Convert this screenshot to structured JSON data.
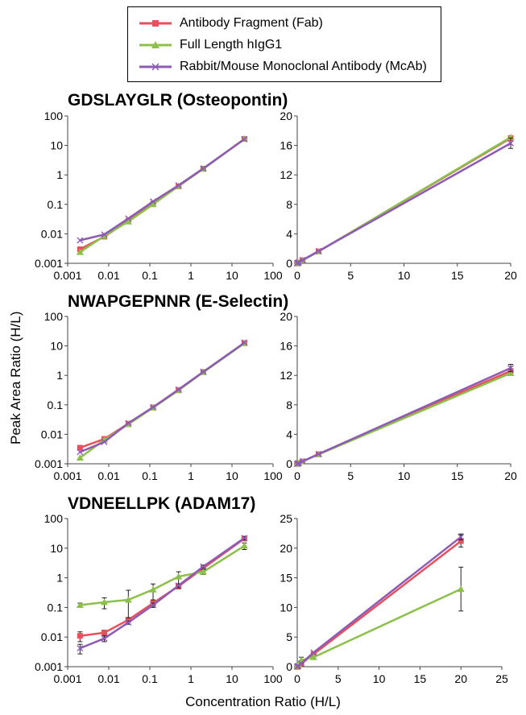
{
  "legend": [
    {
      "name": "Antibody Fragment (Fab)",
      "color": "#e8505b",
      "marker": "square"
    },
    {
      "name": "Full Length hIgG1",
      "color": "#8cc04b",
      "marker": "triangle"
    },
    {
      "name": "Rabbit/Mouse Monoclonal Antibody (McAb)",
      "color": "#8e5bb4",
      "marker": "x"
    }
  ],
  "ylabel": "Peak Area Ratio (H/L)",
  "xlabel": "Concentration Ratio (H/L)",
  "panel_titles": [
    "GDSLAYGLR (Osteopontin)",
    "NWAPGEPNNR (E-Selectin)",
    "VDNEELLPK (ADAM17)"
  ],
  "chart_data": [
    {
      "type": "line",
      "title": "GDSLAYGLR (Osteopontin)",
      "scale": "log",
      "xlim": [
        0.001,
        100
      ],
      "ylim": [
        0.001,
        100
      ],
      "xticks": [
        "0.001",
        "0.01",
        "0.1",
        "1",
        "10",
        "100"
      ],
      "yticks": [
        "0.001",
        "0.01",
        "0.1",
        "1",
        "10",
        "100"
      ],
      "series": [
        {
          "name": "Antibody Fragment (Fab)",
          "x": [
            0.002,
            0.0078,
            0.03,
            0.12,
            0.5,
            2,
            20
          ],
          "y": [
            0.003,
            0.008,
            0.028,
            0.105,
            0.41,
            1.62,
            16.5
          ]
        },
        {
          "name": "Full Length hIgG1",
          "x": [
            0.002,
            0.0078,
            0.03,
            0.12,
            0.5,
            2,
            20
          ],
          "y": [
            0.0024,
            0.0085,
            0.026,
            0.1,
            0.42,
            1.6,
            16.8
          ]
        },
        {
          "name": "Rabbit/Mouse Monoclonal Antibody (McAb)",
          "x": [
            0.002,
            0.0078,
            0.03,
            0.12,
            0.5,
            2,
            20
          ],
          "y": [
            0.006,
            0.0095,
            0.033,
            0.125,
            0.44,
            1.65,
            16.2
          ]
        }
      ]
    },
    {
      "type": "line",
      "title": "GDSLAYGLR (Osteopontin)",
      "scale": "linear",
      "xlim": [
        0,
        20
      ],
      "ylim": [
        0,
        20
      ],
      "xticks": [
        "0",
        "5",
        "10",
        "15",
        "20"
      ],
      "yticks": [
        "0",
        "4",
        "8",
        "12",
        "16",
        "20"
      ],
      "series": [
        {
          "name": "Antibody Fragment (Fab)",
          "x": [
            0.002,
            0.0078,
            0.03,
            0.12,
            0.5,
            2,
            20
          ],
          "y": [
            0.003,
            0.008,
            0.028,
            0.105,
            0.41,
            1.62,
            17.0
          ]
        },
        {
          "name": "Full Length hIgG1",
          "x": [
            0.002,
            0.0078,
            0.03,
            0.12,
            0.5,
            2,
            20
          ],
          "y": [
            0.0024,
            0.0085,
            0.026,
            0.1,
            0.42,
            1.6,
            17.1
          ]
        },
        {
          "name": "Rabbit/Mouse Monoclonal Antibody (McAb)",
          "x": [
            0.002,
            0.0078,
            0.03,
            0.12,
            0.5,
            2,
            20
          ],
          "y": [
            0.006,
            0.0095,
            0.033,
            0.125,
            0.44,
            1.65,
            16.3
          ],
          "error": [
            0,
            0,
            0,
            0,
            0,
            0,
            0.7
          ]
        }
      ]
    },
    {
      "type": "line",
      "title": "NWAPGEPNNR (E-Selectin)",
      "scale": "log",
      "xlim": [
        0.001,
        100
      ],
      "ylim": [
        0.001,
        100
      ],
      "xticks": [
        "0.001",
        "0.01",
        "0.1",
        "1",
        "10",
        "100"
      ],
      "yticks": [
        "0.001",
        "0.01",
        "0.1",
        "1",
        "10",
        "100"
      ],
      "series": [
        {
          "name": "Antibody Fragment (Fab)",
          "x": [
            0.002,
            0.0078,
            0.03,
            0.12,
            0.5,
            2,
            20
          ],
          "y": [
            0.0035,
            0.007,
            0.023,
            0.082,
            0.32,
            1.3,
            12.5
          ]
        },
        {
          "name": "Full Length hIgG1",
          "x": [
            0.002,
            0.0078,
            0.03,
            0.12,
            0.5,
            2,
            20
          ],
          "y": [
            0.0016,
            0.0065,
            0.022,
            0.08,
            0.31,
            1.28,
            12.3
          ]
        },
        {
          "name": "Rabbit/Mouse Monoclonal Antibody (McAb)",
          "x": [
            0.002,
            0.0078,
            0.03,
            0.12,
            0.5,
            2,
            20
          ],
          "y": [
            0.0025,
            0.0055,
            0.024,
            0.083,
            0.33,
            1.32,
            12.9
          ]
        }
      ]
    },
    {
      "type": "line",
      "title": "NWAPGEPNNR (E-Selectin)",
      "scale": "linear",
      "xlim": [
        0,
        20
      ],
      "ylim": [
        0,
        20
      ],
      "xticks": [
        "0",
        "5",
        "10",
        "15",
        "20"
      ],
      "yticks": [
        "0",
        "4",
        "8",
        "12",
        "16",
        "20"
      ],
      "series": [
        {
          "name": "Antibody Fragment (Fab)",
          "x": [
            0.002,
            0.0078,
            0.03,
            0.12,
            0.5,
            2,
            20
          ],
          "y": [
            0.0035,
            0.007,
            0.023,
            0.082,
            0.32,
            1.3,
            12.6
          ]
        },
        {
          "name": "Full Length hIgG1",
          "x": [
            0.002,
            0.0078,
            0.03,
            0.12,
            0.5,
            2,
            20
          ],
          "y": [
            0.0016,
            0.0065,
            0.022,
            0.08,
            0.31,
            1.28,
            12.3
          ]
        },
        {
          "name": "Rabbit/Mouse Monoclonal Antibody (McAb)",
          "x": [
            0.002,
            0.0078,
            0.03,
            0.12,
            0.5,
            2,
            20
          ],
          "y": [
            0.0025,
            0.0055,
            0.024,
            0.083,
            0.33,
            1.32,
            13.0
          ],
          "error": [
            0,
            0,
            0,
            0,
            0,
            0,
            0.5
          ]
        }
      ]
    },
    {
      "type": "line",
      "title": "VDNEELLPK (ADAM17)",
      "scale": "log",
      "xlim": [
        0.001,
        100
      ],
      "ylim": [
        0.001,
        100
      ],
      "xticks": [
        "0.001",
        "0.01",
        "0.1",
        "1",
        "10",
        "100"
      ],
      "yticks": [
        "0.001",
        "0.01",
        "0.1",
        "1",
        "10",
        "100"
      ],
      "series": [
        {
          "name": "Antibody Fragment (Fab)",
          "x": [
            0.002,
            0.0078,
            0.03,
            0.12,
            0.5,
            2,
            20
          ],
          "y": [
            0.011,
            0.014,
            0.038,
            0.14,
            0.52,
            2.1,
            21
          ],
          "error": [
            0.004,
            0.003,
            0.005,
            0.03,
            0.1,
            0.3,
            3
          ]
        },
        {
          "name": "Full Length hIgG1",
          "x": [
            0.002,
            0.0078,
            0.03,
            0.12,
            0.5,
            2,
            20
          ],
          "y": [
            0.12,
            0.15,
            0.18,
            0.4,
            1.1,
            1.6,
            12
          ],
          "error": [
            0.02,
            0.06,
            0.2,
            0.22,
            0.5,
            0.3,
            3
          ]
        },
        {
          "name": "Rabbit/Mouse Monoclonal Antibody (McAb)",
          "x": [
            0.002,
            0.0078,
            0.03,
            0.12,
            0.5,
            2,
            20
          ],
          "y": [
            0.0042,
            0.009,
            0.031,
            0.12,
            0.55,
            2.4,
            22
          ],
          "error": [
            0.0015,
            0.002,
            0.004,
            0.02,
            0.08,
            0.3,
            3
          ]
        }
      ]
    },
    {
      "type": "line",
      "title": "VDNEELLPK (ADAM17)",
      "scale": "linear",
      "xlim": [
        0,
        25
      ],
      "ylim": [
        0,
        25
      ],
      "xticks": [
        "0",
        "5",
        "10",
        "15",
        "20",
        "25"
      ],
      "yticks": [
        "0",
        "5",
        "10",
        "15",
        "20",
        "25"
      ],
      "series": [
        {
          "name": "Antibody Fragment (Fab)",
          "x": [
            0.002,
            0.0078,
            0.03,
            0.12,
            0.5,
            2,
            20
          ],
          "y": [
            0.011,
            0.014,
            0.038,
            0.14,
            0.52,
            2.1,
            21.2
          ],
          "error": [
            0,
            0,
            0,
            0,
            0,
            0,
            1.0
          ]
        },
        {
          "name": "Full Length hIgG1",
          "x": [
            0.002,
            0.0078,
            0.03,
            0.12,
            0.5,
            2,
            20
          ],
          "y": [
            0.12,
            0.15,
            0.18,
            0.4,
            1.1,
            1.6,
            13.1
          ],
          "error": [
            0,
            0,
            0,
            0,
            0.5,
            0,
            3.7
          ]
        },
        {
          "name": "Rabbit/Mouse Monoclonal Antibody (McAb)",
          "x": [
            0.002,
            0.0078,
            0.03,
            0.12,
            0.5,
            2,
            20
          ],
          "y": [
            0.0042,
            0.009,
            0.031,
            0.12,
            0.55,
            2.4,
            21.9
          ],
          "error": [
            0,
            0,
            0,
            0,
            0,
            0,
            0.5
          ]
        }
      ]
    }
  ]
}
